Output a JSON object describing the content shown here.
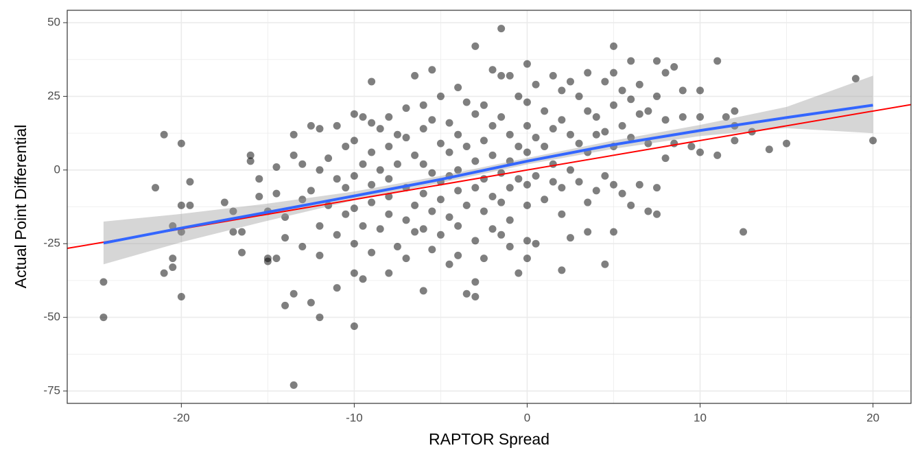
{
  "chart_data": {
    "type": "scatter",
    "x_label": "RAPTOR Spread",
    "y_label": "Actual Point Differential",
    "xlim": [
      -26.6,
      22.2
    ],
    "ylim": [
      -79.2,
      54.2
    ],
    "xticks": [
      -20,
      -10,
      0,
      10,
      20
    ],
    "yticks": [
      -75,
      -50,
      -25,
      0,
      25,
      50
    ],
    "grid": true,
    "point_color": "#000000",
    "x": [
      -24.5,
      -24.5,
      -21,
      -21.5,
      -20,
      -19.5,
      -20,
      -19.5,
      -20.5,
      -20,
      -21,
      -20.5,
      -20.5,
      -20,
      -13.5,
      -10,
      -12,
      -1.5,
      -3,
      5,
      11,
      19,
      20,
      12.5,
      4.5,
      -14,
      -13.5,
      -12.5,
      15,
      14,
      13,
      12,
      -17.5,
      -17,
      -17,
      -16.5,
      -16.5,
      -16,
      -16,
      -15.5,
      -15.5,
      -15,
      -15,
      -15,
      -14.5,
      -14.5,
      -14,
      -14,
      -14.5,
      -13.5,
      -13.5,
      -13,
      -13,
      -13,
      -12.5,
      -12.5,
      -12,
      -12,
      -12,
      -12,
      -11.5,
      -11.5,
      -11,
      -11,
      -11,
      -11,
      -10.5,
      -10.5,
      -10.5,
      -10,
      -10,
      -10,
      -10,
      -10,
      -10,
      -9.5,
      -9.5,
      -9.5,
      -9.5,
      -9,
      -9,
      -9,
      -9,
      -9,
      -9,
      -8.5,
      -8.5,
      -8.5,
      -8,
      -8,
      -8,
      -8,
      -8,
      -8,
      -7.5,
      -7.5,
      -7.5,
      -7,
      -7,
      -7,
      -7,
      -7,
      -6.5,
      -6.5,
      -6.5,
      -6.5,
      -6,
      -6,
      -6,
      -6,
      -6,
      -6,
      -5.5,
      -5.5,
      -5.5,
      -5.5,
      -5.5,
      -5,
      -5,
      -5,
      -5,
      -5,
      -4.5,
      -4.5,
      -4.5,
      -4.5,
      -4.5,
      -4,
      -4,
      -4,
      -4,
      -4,
      -4,
      -3.5,
      -3.5,
      -3.5,
      -3.5,
      -3,
      -3,
      -3,
      -3,
      -3,
      -3,
      -2.5,
      -2.5,
      -2.5,
      -2.5,
      -2.5,
      -2,
      -2,
      -2,
      -2,
      -2,
      -1.5,
      -1.5,
      -1.5,
      -1.5,
      -1.5,
      -1,
      -1,
      -1,
      -1,
      -1,
      -1,
      -0.5,
      -0.5,
      -0.5,
      -0.5,
      0,
      0,
      0,
      0,
      0,
      0,
      0,
      0,
      0.5,
      0.5,
      0.5,
      0.5,
      1,
      1,
      1,
      1.5,
      1.5,
      1.5,
      1.5,
      2,
      2,
      2,
      2,
      2,
      2.5,
      2.5,
      2.5,
      2.5,
      3,
      3,
      3,
      3.5,
      3.5,
      3.5,
      3.5,
      3.5,
      4,
      4,
      4,
      4.5,
      4.5,
      4.5,
      5,
      5,
      5,
      5,
      5,
      5.5,
      5.5,
      5.5,
      6,
      6,
      6,
      6,
      6.5,
      6.5,
      6.5,
      7,
      7,
      7,
      7.5,
      7.5,
      7.5,
      7.5,
      8,
      8,
      8,
      8.5,
      8.5,
      9,
      9,
      9.5,
      10,
      10,
      10,
      11,
      11.5,
      12,
      12
    ],
    "y": [
      -38,
      -50,
      12,
      -6,
      9,
      -4,
      -12,
      -12,
      -19,
      -21,
      -35,
      -33,
      -30,
      -43,
      -73,
      -53,
      -50,
      48,
      42,
      42,
      37,
      31,
      10,
      -21,
      -32,
      -46,
      -42,
      -45,
      9,
      7,
      13,
      10,
      -11,
      -14,
      -21,
      -21,
      -28,
      5,
      3,
      -3,
      -9,
      -14,
      -30,
      -31,
      1,
      -8,
      -16,
      -23,
      -30,
      12,
      5,
      2,
      -10,
      -26,
      15,
      -7,
      14,
      0,
      -19,
      -29,
      4,
      -12,
      15,
      -3,
      -22,
      -40,
      8,
      -6,
      -15,
      19,
      10,
      -2,
      -13,
      -25,
      -35,
      18,
      2,
      -19,
      -37,
      30,
      16,
      6,
      -5,
      -11,
      -28,
      14,
      0,
      -20,
      18,
      8,
      -3,
      -9,
      -15,
      -35,
      12,
      2,
      -26,
      21,
      11,
      -6,
      -17,
      -30,
      32,
      5,
      -12,
      -21,
      22,
      14,
      2,
      -8,
      -20,
      -41,
      34,
      17,
      -1,
      -14,
      -27,
      25,
      9,
      -4,
      -10,
      -22,
      16,
      6,
      -2,
      -16,
      -32,
      28,
      12,
      0,
      -7,
      -19,
      -29,
      23,
      8,
      -12,
      -42,
      19,
      3,
      -6,
      -24,
      -43,
      -38,
      22,
      10,
      -3,
      -14,
      -30,
      34,
      15,
      5,
      -9,
      -20,
      32,
      18,
      -1,
      -11,
      -22,
      32,
      12,
      3,
      -6,
      -17,
      -26,
      25,
      8,
      -3,
      -35,
      36,
      23,
      15,
      6,
      -5,
      -12,
      -24,
      -30,
      29,
      11,
      -2,
      -25,
      20,
      8,
      -10,
      32,
      14,
      2,
      -4,
      27,
      17,
      -6,
      -15,
      -34,
      30,
      12,
      0,
      -23,
      25,
      9,
      -4,
      33,
      20,
      6,
      -11,
      -21,
      18,
      12,
      -7,
      30,
      13,
      -2,
      33,
      22,
      8,
      -5,
      -21,
      27,
      15,
      -8,
      37,
      24,
      11,
      -12,
      29,
      19,
      -5,
      20,
      9,
      -14,
      37,
      25,
      -6,
      -15,
      33,
      17,
      4,
      35,
      9,
      27,
      18,
      8,
      27,
      18,
      6,
      5,
      18,
      20,
      15
    ],
    "fit": {
      "color": "#3366ff",
      "band_color": "#999999",
      "x": [
        -24.5,
        -20,
        -15,
        -10,
        -5,
        0,
        5,
        10,
        15,
        20
      ],
      "y": [
        -24.8,
        -19.7,
        -14.3,
        -8.8,
        -3.2,
        3,
        8.6,
        13.4,
        17.8,
        22
      ],
      "lower": [
        -32,
        -24.5,
        -17.2,
        -10.3,
        -4.4,
        1.9,
        7.2,
        11.5,
        14.2,
        12.5
      ],
      "upper": [
        -17.5,
        -14.9,
        -11.4,
        -7.3,
        -2,
        4.1,
        10,
        15.3,
        21.4,
        32
      ]
    },
    "reference_line": {
      "color": "#ff0000",
      "x": [
        -26.6,
        22.2
      ],
      "y": [
        -26.6,
        22.2
      ]
    }
  }
}
